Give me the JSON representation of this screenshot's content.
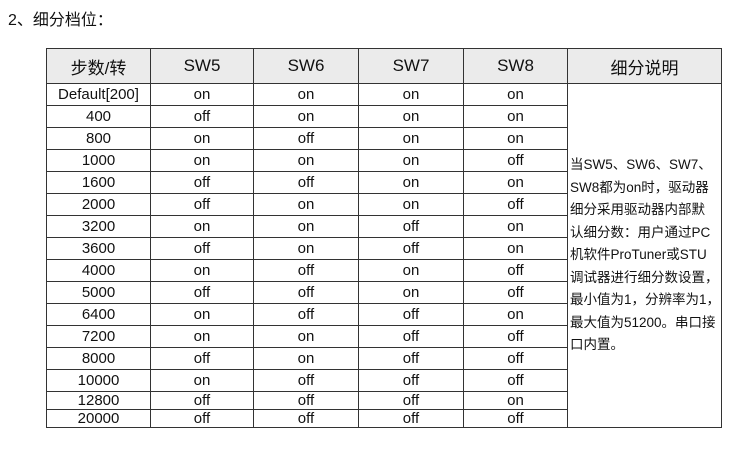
{
  "title": "2、细分档位：",
  "table": {
    "headers": [
      "步数/转",
      "SW5",
      "SW6",
      "SW7",
      "SW8",
      "细分说明"
    ],
    "rows": [
      [
        "Default[200]",
        "on",
        "on",
        "on",
        "on"
      ],
      [
        "400",
        "off",
        "on",
        "on",
        "on"
      ],
      [
        "800",
        "on",
        "off",
        "on",
        "on"
      ],
      [
        "1000",
        "on",
        "on",
        "on",
        "off"
      ],
      [
        "1600",
        "off",
        "off",
        "on",
        "on"
      ],
      [
        "2000",
        "off",
        "on",
        "on",
        "off"
      ],
      [
        "3200",
        "on",
        "on",
        "off",
        "on"
      ],
      [
        "3600",
        "off",
        "on",
        "off",
        "on"
      ],
      [
        "4000",
        "on",
        "off",
        "on",
        "off"
      ],
      [
        "5000",
        "off",
        "off",
        "on",
        "off"
      ],
      [
        "6400",
        "on",
        "off",
        "off",
        "on"
      ],
      [
        "7200",
        "on",
        "on",
        "off",
        "off"
      ],
      [
        "8000",
        "off",
        "on",
        "off",
        "off"
      ],
      [
        "10000",
        "on",
        "off",
        "off",
        "off"
      ],
      [
        "12800",
        "off",
        "off",
        "off",
        "on"
      ],
      [
        "20000",
        "off",
        "off",
        "off",
        "off"
      ]
    ],
    "description_lines": [
      "当SW5、SW6、SW7、",
      "SW8都为on时，驱动器",
      "细分采用驱动器内部默",
      "认细分数：用户通过PC",
      "机软件ProTuner或STU",
      "调试器进行细分数设置，",
      "最小值为1，分辨率为1，",
      "最大值为51200。串口接",
      "口内置。"
    ]
  }
}
